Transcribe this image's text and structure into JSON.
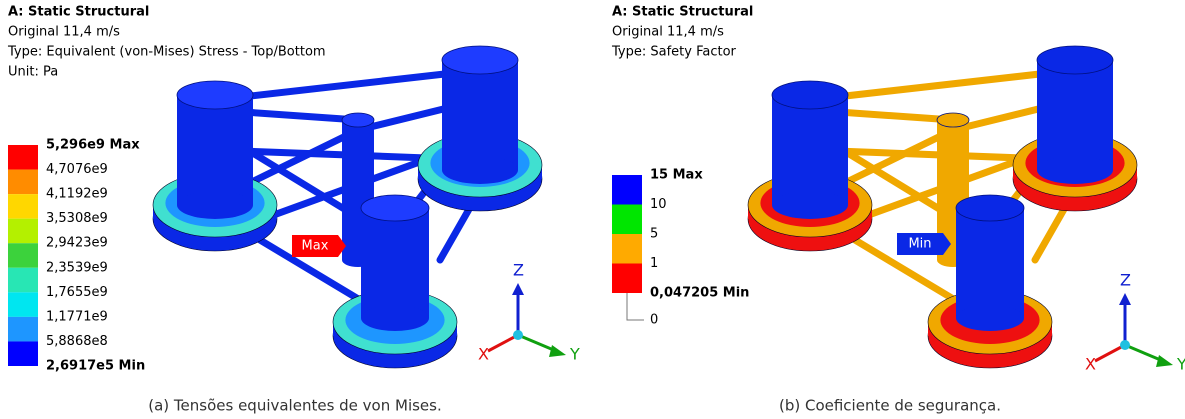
{
  "panels": [
    {
      "header": [
        "A: Static Structural",
        "Original 11,4 m/s",
        "Type: Equivalent (von-Mises) Stress - Top/Bottom",
        "Unit: Pa"
      ],
      "legend": {
        "bands": [
          "#ff0000",
          "#ff8c00",
          "#ffd700",
          "#b4f000",
          "#3cd23c",
          "#28e6b4",
          "#00e6f0",
          "#1e96ff",
          "#0000ff"
        ],
        "labels": [
          "5,296e9 Max",
          "4,7076e9",
          "4,1192e9",
          "3,5308e9",
          "2,9423e9",
          "2,3539e9",
          "1,7655e9",
          "1,1771e9",
          "5,8868e8",
          "2,6917e5 Min"
        ]
      },
      "probe": "Max",
      "triad": [
        "X",
        "Y",
        "Z"
      ],
      "caption": "(a) Tensões equivalentes de von Mises."
    },
    {
      "header": [
        "A: Static Structural",
        "Original 11,4 m/s",
        "Type: Safety Factor"
      ],
      "legend": {
        "bands": [
          "#0000ff",
          "#00e600",
          "#ffaa00",
          "#ff0000"
        ],
        "labels": [
          "15 Max",
          "10",
          "5",
          "1",
          "0,047205 Min",
          "0"
        ]
      },
      "probe": "Min",
      "triad": [
        "X",
        "Y",
        "Z"
      ],
      "caption": "(b) Coeficiente de segurança."
    }
  ]
}
